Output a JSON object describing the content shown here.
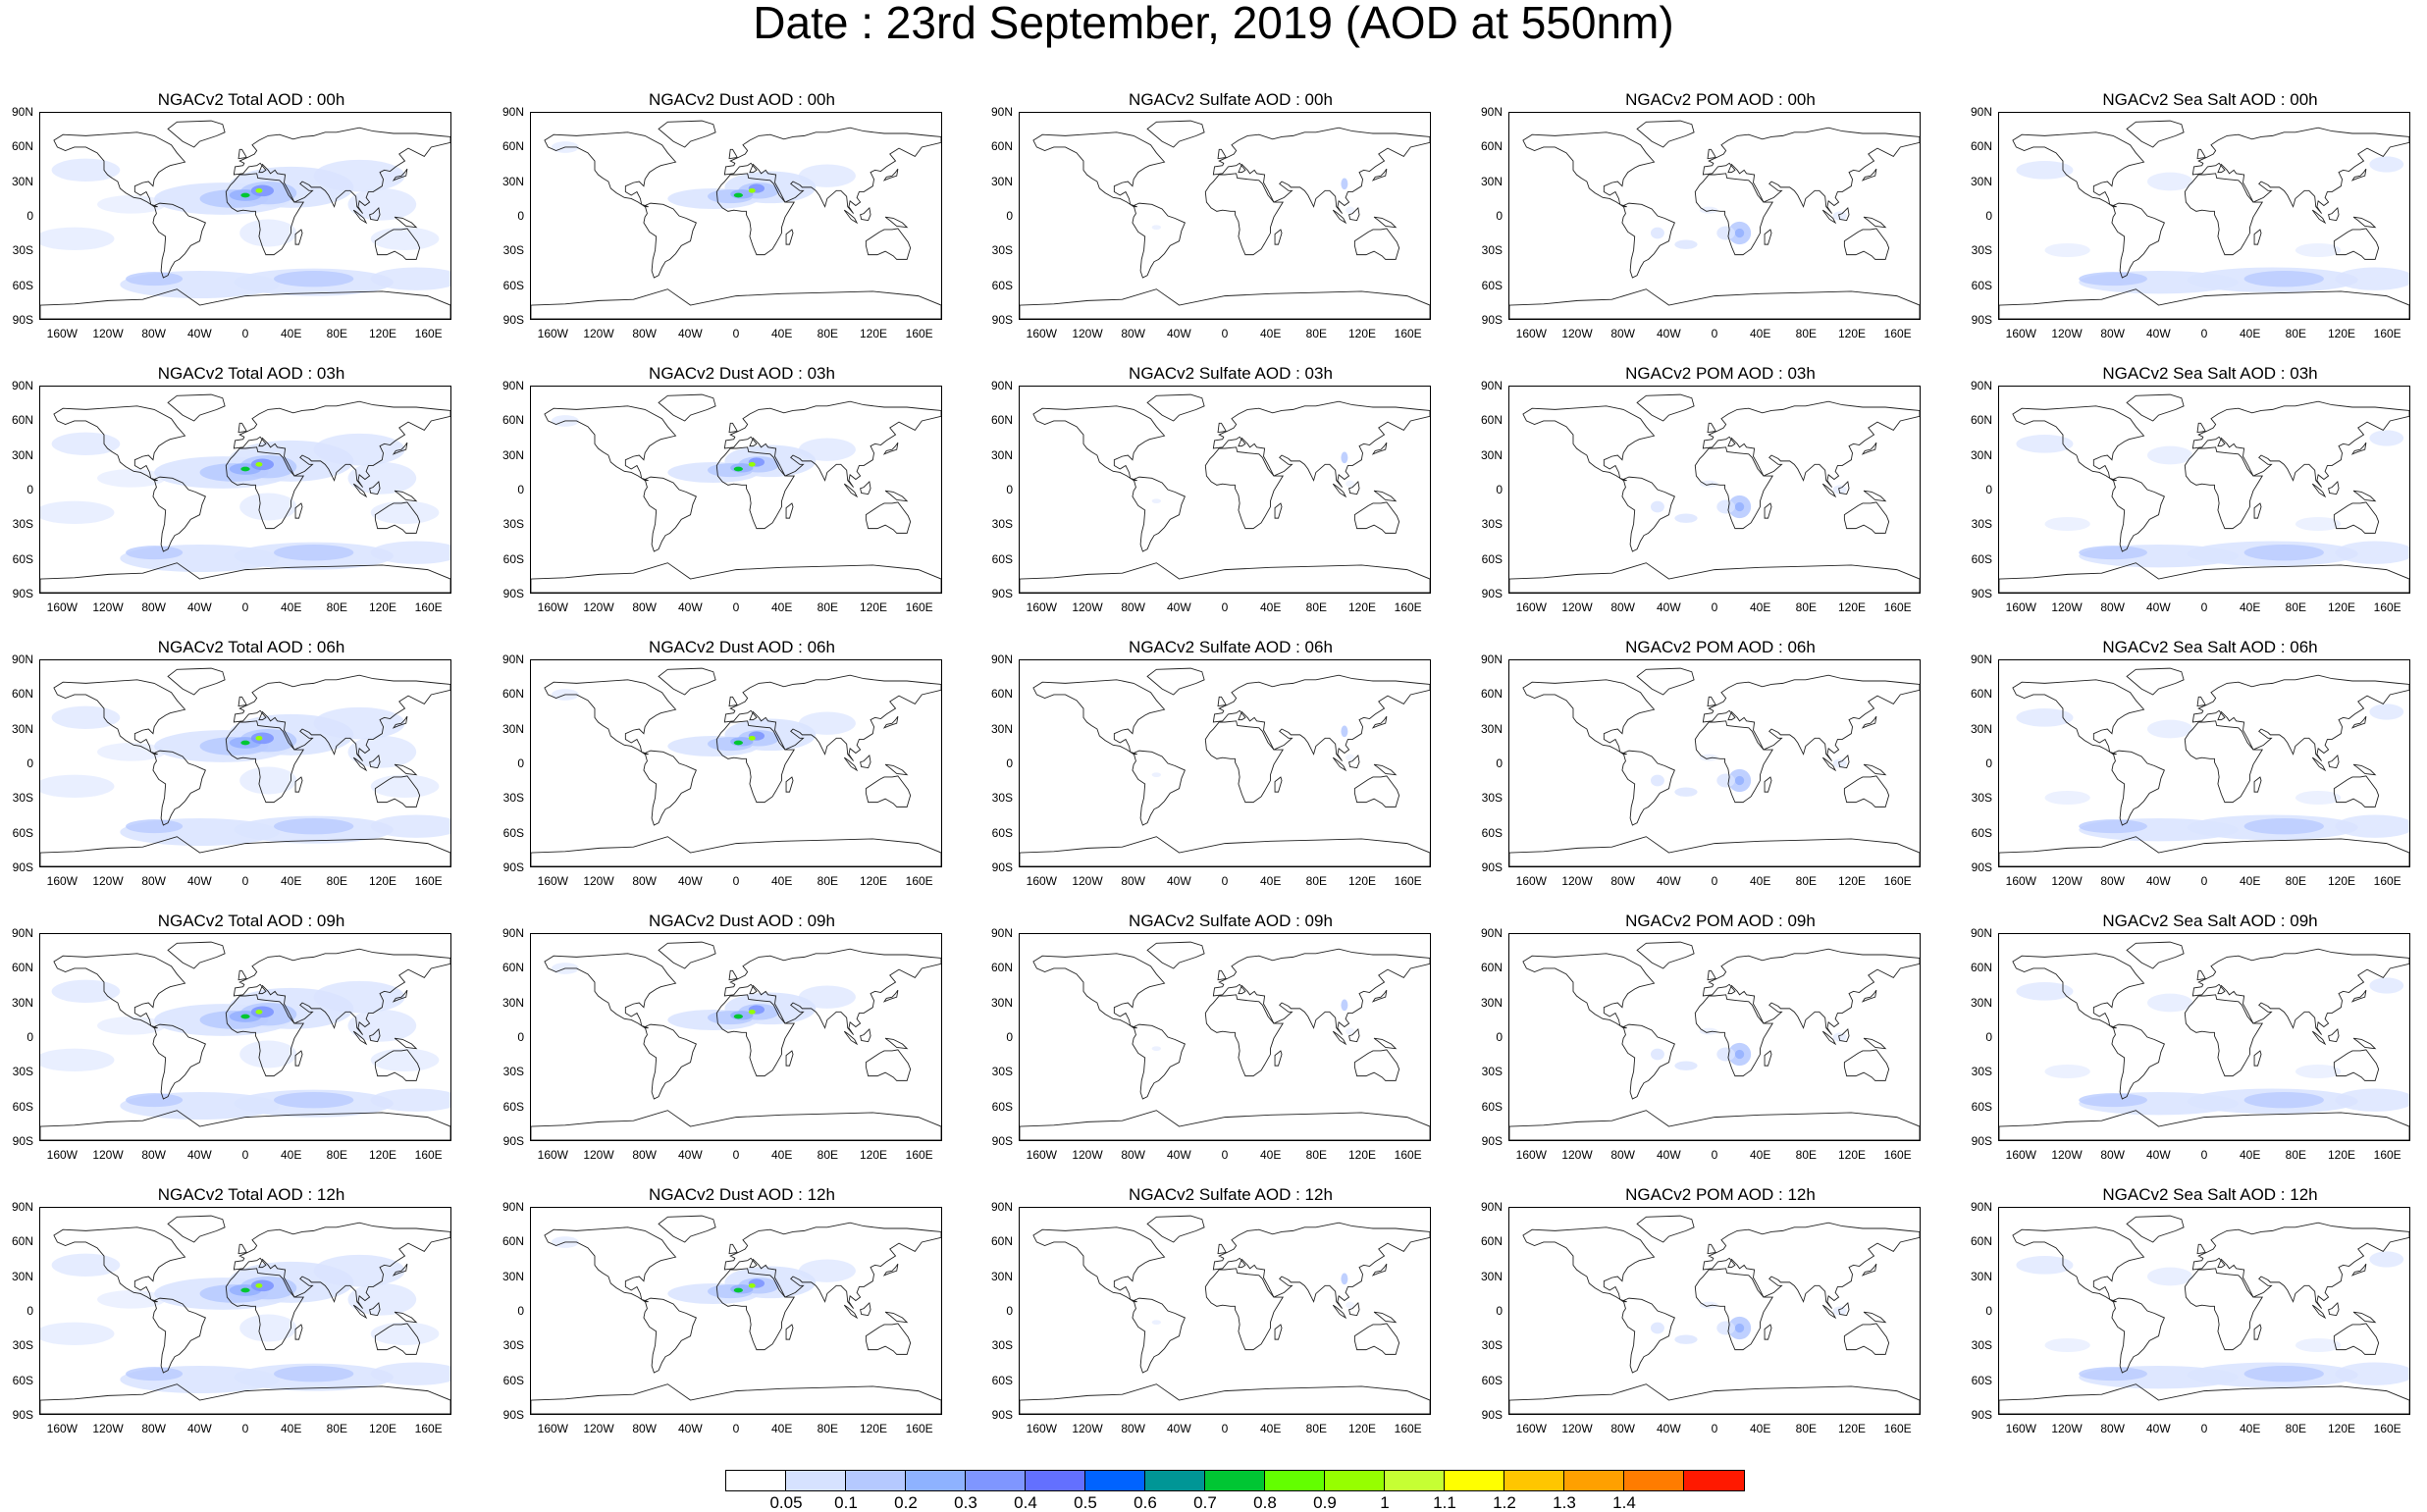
{
  "title": "Date : 23rd September, 2019 (AOD at 550nm)",
  "lat_labels": [
    "90N",
    "60N",
    "30N",
    "0",
    "30S",
    "60S",
    "90S"
  ],
  "lon_labels": [
    "160W",
    "120W",
    "80W",
    "40W",
    "0",
    "40E",
    "80E",
    "120E",
    "160E"
  ],
  "panels": [
    {
      "title": "NGACv2 Total AOD : 00h",
      "species": "total"
    },
    {
      "title": "NGACv2 Dust AOD : 00h",
      "species": "dust"
    },
    {
      "title": "NGACv2 Sulfate AOD : 00h",
      "species": "sulfate"
    },
    {
      "title": "NGACv2 POM AOD : 00h",
      "species": "pom"
    },
    {
      "title": "NGACv2 Sea Salt AOD : 00h",
      "species": "seasalt"
    },
    {
      "title": "NGACv2 Total AOD : 03h",
      "species": "total"
    },
    {
      "title": "NGACv2 Dust AOD : 03h",
      "species": "dust"
    },
    {
      "title": "NGACv2 Sulfate AOD : 03h",
      "species": "sulfate"
    },
    {
      "title": "NGACv2 POM AOD : 03h",
      "species": "pom"
    },
    {
      "title": "NGACv2 Sea Salt AOD : 03h",
      "species": "seasalt"
    },
    {
      "title": "NGACv2 Total AOD : 06h",
      "species": "total"
    },
    {
      "title": "NGACv2 Dust AOD : 06h",
      "species": "dust"
    },
    {
      "title": "NGACv2 Sulfate AOD : 06h",
      "species": "sulfate"
    },
    {
      "title": "NGACv2 POM AOD : 06h",
      "species": "pom"
    },
    {
      "title": "NGACv2 Sea Salt AOD : 06h",
      "species": "seasalt"
    },
    {
      "title": "NGACv2 Total AOD : 09h",
      "species": "total"
    },
    {
      "title": "NGACv2 Dust AOD : 09h",
      "species": "dust"
    },
    {
      "title": "NGACv2 Sulfate AOD : 09h",
      "species": "sulfate"
    },
    {
      "title": "NGACv2 POM AOD : 09h",
      "species": "pom"
    },
    {
      "title": "NGACv2 Sea Salt  AOD : 09h",
      "species": "seasalt"
    },
    {
      "title": "NGACv2 Total AOD  : 12h",
      "species": "total"
    },
    {
      "title": "NGACv2 Dust AOD : 12h",
      "species": "dust"
    },
    {
      "title": "NGACv2 Sulfate AOD : 12h",
      "species": "sulfate"
    },
    {
      "title": "NGACv2 POM  AOD : 12h",
      "species": "pom"
    },
    {
      "title": "NGACv2 Sea Salt AOD : 12h",
      "species": "seasalt"
    }
  ],
  "colorbar": {
    "colors": [
      "#ffffff",
      "#d6e2ff",
      "#b5c9ff",
      "#8eb2ff",
      "#7f96ff",
      "#6370ff",
      "#0063ff",
      "#009696",
      "#00c633",
      "#63ff00",
      "#96ff00",
      "#c6ff33",
      "#ffff00",
      "#ffc600",
      "#ffa000",
      "#ff7c00",
      "#ff1900"
    ],
    "labels": [
      "0.05",
      "0.1",
      "0.2",
      "0.3",
      "0.4",
      "0.5",
      "0.6",
      "0.7",
      "0.8",
      "0.9",
      "1",
      "1.1",
      "1.2",
      "1.3",
      "1.4"
    ]
  }
}
